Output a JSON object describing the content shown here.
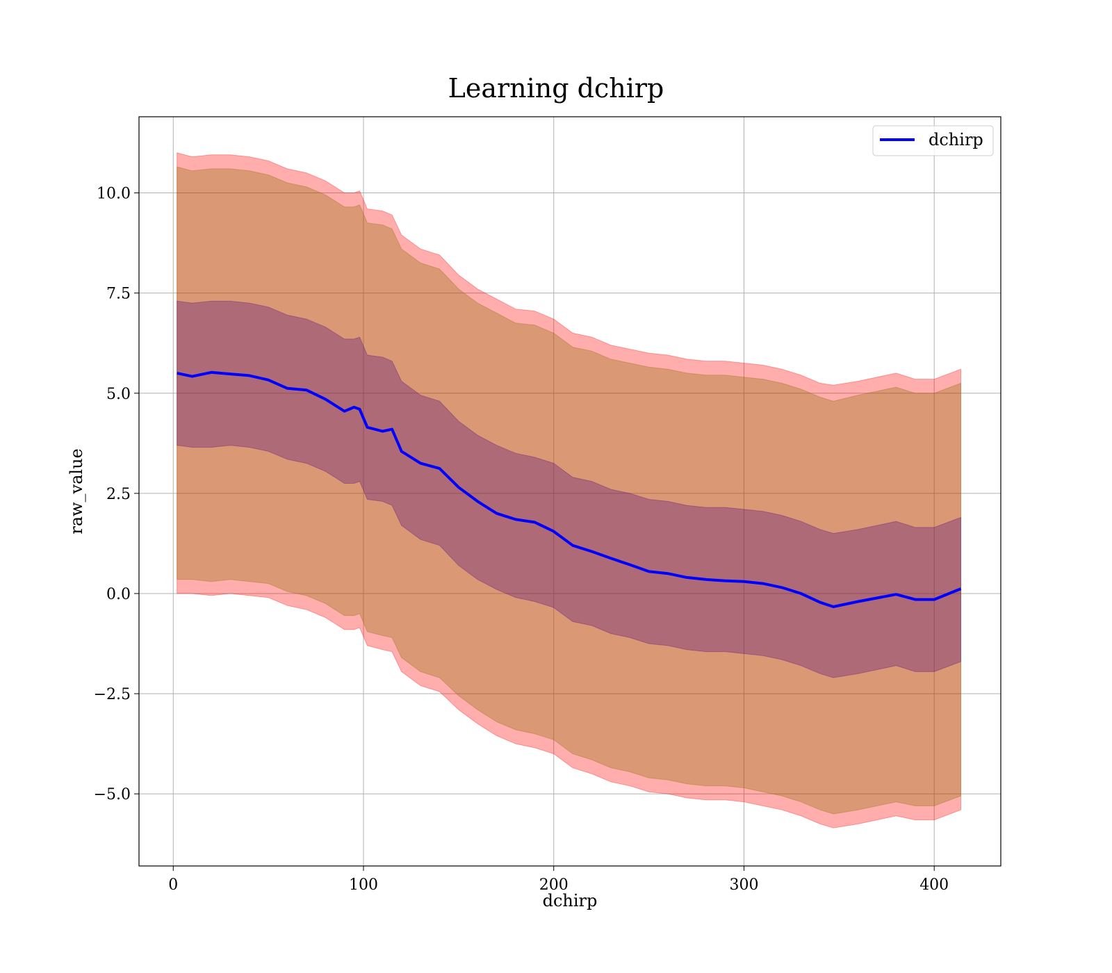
{
  "chart_data": {
    "type": "line",
    "title": "Learning dchirp",
    "xlabel": "dchirp",
    "ylabel": "raw_value",
    "xlim": [
      -18,
      435
    ],
    "ylim": [
      -6.8,
      11.9
    ],
    "x_ticks": [
      0,
      100,
      200,
      300,
      400
    ],
    "x_tick_labels": [
      "0",
      "100",
      "200",
      "300",
      "400"
    ],
    "y_ticks": [
      -5.0,
      -2.5,
      0.0,
      2.5,
      5.0,
      7.5,
      10.0
    ],
    "y_tick_labels": [
      "−5.0",
      "−2.5",
      "0.0",
      "2.5",
      "5.0",
      "7.5",
      "10.0"
    ],
    "grid": true,
    "legend_position": "top-right",
    "x": [
      2,
      10,
      20,
      30,
      40,
      50,
      60,
      70,
      80,
      90,
      95,
      98,
      102,
      110,
      115,
      120,
      130,
      140,
      150,
      160,
      170,
      180,
      190,
      200,
      210,
      220,
      230,
      240,
      250,
      260,
      270,
      280,
      290,
      300,
      310,
      320,
      330,
      340,
      347,
      360,
      380,
      390,
      400,
      414
    ],
    "series": [
      {
        "name": "dchirp",
        "color": "#0000ff",
        "values": [
          5.5,
          5.42,
          5.52,
          5.48,
          5.44,
          5.33,
          5.12,
          5.08,
          4.85,
          4.55,
          4.65,
          4.6,
          4.15,
          4.05,
          4.1,
          3.55,
          3.25,
          3.12,
          2.65,
          2.3,
          2.0,
          1.85,
          1.78,
          1.55,
          1.2,
          1.05,
          0.88,
          0.72,
          0.55,
          0.5,
          0.4,
          0.35,
          0.32,
          0.3,
          0.25,
          0.15,
          0.0,
          -0.22,
          -0.33,
          -0.2,
          -0.02,
          -0.15,
          -0.15,
          0.12
        ]
      }
    ],
    "bands": [
      {
        "color": "#ff0000",
        "opacity": 0.32,
        "upper": [
          11.0,
          10.9,
          10.95,
          10.95,
          10.9,
          10.8,
          10.6,
          10.5,
          10.3,
          10.0,
          10.0,
          10.05,
          9.6,
          9.55,
          9.45,
          8.95,
          8.6,
          8.45,
          7.95,
          7.6,
          7.35,
          7.1,
          7.05,
          6.85,
          6.5,
          6.4,
          6.2,
          6.1,
          6.0,
          5.95,
          5.85,
          5.8,
          5.8,
          5.75,
          5.7,
          5.6,
          5.45,
          5.25,
          5.2,
          5.3,
          5.5,
          5.35,
          5.35,
          5.6
        ],
        "lower": [
          0.0,
          0.0,
          -0.05,
          0.0,
          -0.05,
          -0.1,
          -0.3,
          -0.4,
          -0.6,
          -0.9,
          -0.9,
          -0.85,
          -1.3,
          -1.4,
          -1.45,
          -1.95,
          -2.3,
          -2.45,
          -2.9,
          -3.25,
          -3.55,
          -3.75,
          -3.85,
          -4.0,
          -4.35,
          -4.5,
          -4.7,
          -4.8,
          -4.95,
          -5.0,
          -5.1,
          -5.15,
          -5.15,
          -5.2,
          -5.3,
          -5.4,
          -5.55,
          -5.75,
          -5.85,
          -5.75,
          -5.55,
          -5.65,
          -5.65,
          -5.4
        ]
      },
      {
        "color": "#8b6d00",
        "opacity": 0.32,
        "upper": [
          10.65,
          10.55,
          10.6,
          10.6,
          10.55,
          10.45,
          10.25,
          10.15,
          9.95,
          9.65,
          9.65,
          9.7,
          9.25,
          9.2,
          9.1,
          8.6,
          8.25,
          8.1,
          7.6,
          7.25,
          7.0,
          6.75,
          6.7,
          6.5,
          6.15,
          6.05,
          5.85,
          5.75,
          5.65,
          5.6,
          5.5,
          5.45,
          5.45,
          5.4,
          5.35,
          5.25,
          5.1,
          4.9,
          4.8,
          4.95,
          5.15,
          5.0,
          5.0,
          5.25
        ],
        "lower": [
          0.35,
          0.35,
          0.3,
          0.35,
          0.3,
          0.25,
          0.05,
          -0.05,
          -0.25,
          -0.55,
          -0.55,
          -0.5,
          -0.95,
          -1.05,
          -1.1,
          -1.6,
          -1.95,
          -2.1,
          -2.55,
          -2.9,
          -3.2,
          -3.4,
          -3.5,
          -3.65,
          -4.0,
          -4.15,
          -4.35,
          -4.45,
          -4.6,
          -4.65,
          -4.75,
          -4.8,
          -4.8,
          -4.85,
          -4.95,
          -5.05,
          -5.2,
          -5.4,
          -5.5,
          -5.4,
          -5.2,
          -5.3,
          -5.3,
          -5.05
        ]
      },
      {
        "color": "#4b0082",
        "opacity": 0.3,
        "upper": [
          7.3,
          7.25,
          7.3,
          7.3,
          7.25,
          7.15,
          6.95,
          6.85,
          6.65,
          6.35,
          6.35,
          6.4,
          5.95,
          5.9,
          5.8,
          5.3,
          4.95,
          4.8,
          4.3,
          3.95,
          3.7,
          3.5,
          3.4,
          3.25,
          2.9,
          2.8,
          2.6,
          2.5,
          2.35,
          2.3,
          2.2,
          2.15,
          2.15,
          2.1,
          2.05,
          1.95,
          1.8,
          1.6,
          1.5,
          1.6,
          1.8,
          1.65,
          1.65,
          1.9
        ],
        "lower": [
          3.7,
          3.65,
          3.65,
          3.7,
          3.65,
          3.55,
          3.35,
          3.25,
          3.05,
          2.75,
          2.75,
          2.8,
          2.35,
          2.3,
          2.2,
          1.7,
          1.35,
          1.2,
          0.7,
          0.35,
          0.1,
          -0.1,
          -0.2,
          -0.35,
          -0.7,
          -0.8,
          -1.0,
          -1.1,
          -1.25,
          -1.3,
          -1.4,
          -1.45,
          -1.45,
          -1.5,
          -1.55,
          -1.65,
          -1.8,
          -2.0,
          -2.1,
          -2.0,
          -1.8,
          -1.95,
          -1.95,
          -1.7
        ]
      }
    ]
  }
}
